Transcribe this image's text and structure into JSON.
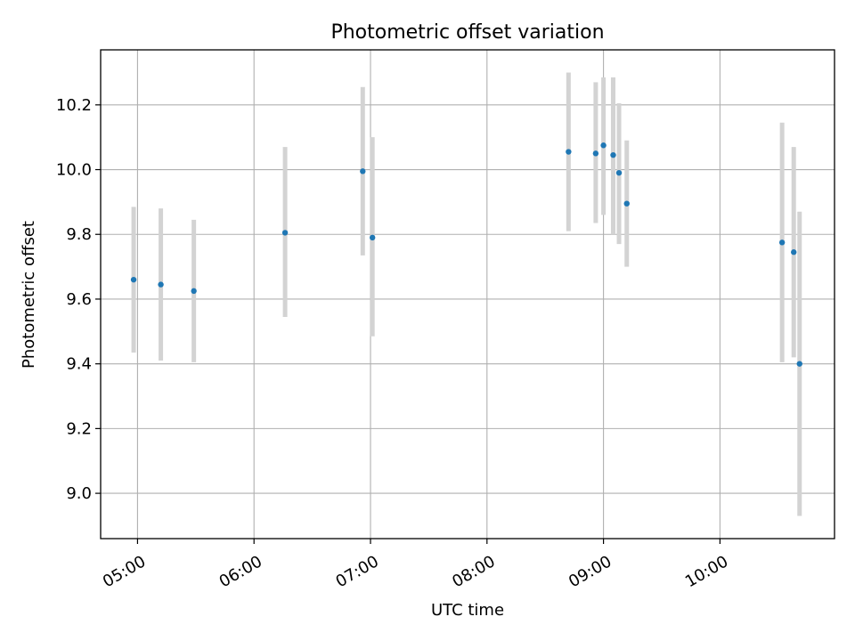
{
  "chart_data": {
    "type": "scatter",
    "title": "Photometric offset variation",
    "xlabel": "UTC time",
    "ylabel": "Photometric offset",
    "x_ticks": [
      "05:00",
      "06:00",
      "07:00",
      "08:00",
      "09:00",
      "10:00"
    ],
    "y_ticks": [
      "9.0",
      "9.2",
      "9.4",
      "9.6",
      "9.8",
      "10.0",
      "10.2"
    ],
    "xlim": [
      "04:41",
      "10:59"
    ],
    "ylim": [
      8.86,
      10.37
    ],
    "grid": true,
    "colors": {
      "point": "#1f77b4",
      "errorbar": "#d3d3d3",
      "grid": "#b0b0b0"
    },
    "points": [
      {
        "t": "04:58",
        "y": 9.66,
        "lo": 9.435,
        "hi": 9.885
      },
      {
        "t": "05:12",
        "y": 9.645,
        "lo": 9.41,
        "hi": 9.88
      },
      {
        "t": "05:29",
        "y": 9.625,
        "lo": 9.405,
        "hi": 9.845
      },
      {
        "t": "06:16",
        "y": 9.805,
        "lo": 9.545,
        "hi": 10.07
      },
      {
        "t": "06:56",
        "y": 9.995,
        "lo": 9.735,
        "hi": 10.255
      },
      {
        "t": "07:01",
        "y": 9.79,
        "lo": 9.485,
        "hi": 10.1
      },
      {
        "t": "08:42",
        "y": 10.055,
        "lo": 9.81,
        "hi": 10.3
      },
      {
        "t": "08:56",
        "y": 10.05,
        "lo": 9.835,
        "hi": 10.27
      },
      {
        "t": "09:00",
        "y": 10.075,
        "lo": 9.86,
        "hi": 10.285
      },
      {
        "t": "09:05",
        "y": 10.045,
        "lo": 9.8,
        "hi": 10.285
      },
      {
        "t": "09:08",
        "y": 9.99,
        "lo": 9.77,
        "hi": 10.205
      },
      {
        "t": "09:12",
        "y": 9.895,
        "lo": 9.7,
        "hi": 10.09
      },
      {
        "t": "10:32",
        "y": 9.775,
        "lo": 9.405,
        "hi": 10.145
      },
      {
        "t": "10:38",
        "y": 9.745,
        "lo": 9.42,
        "hi": 10.07
      },
      {
        "t": "10:41",
        "y": 9.4,
        "lo": 8.93,
        "hi": 9.87
      }
    ]
  }
}
